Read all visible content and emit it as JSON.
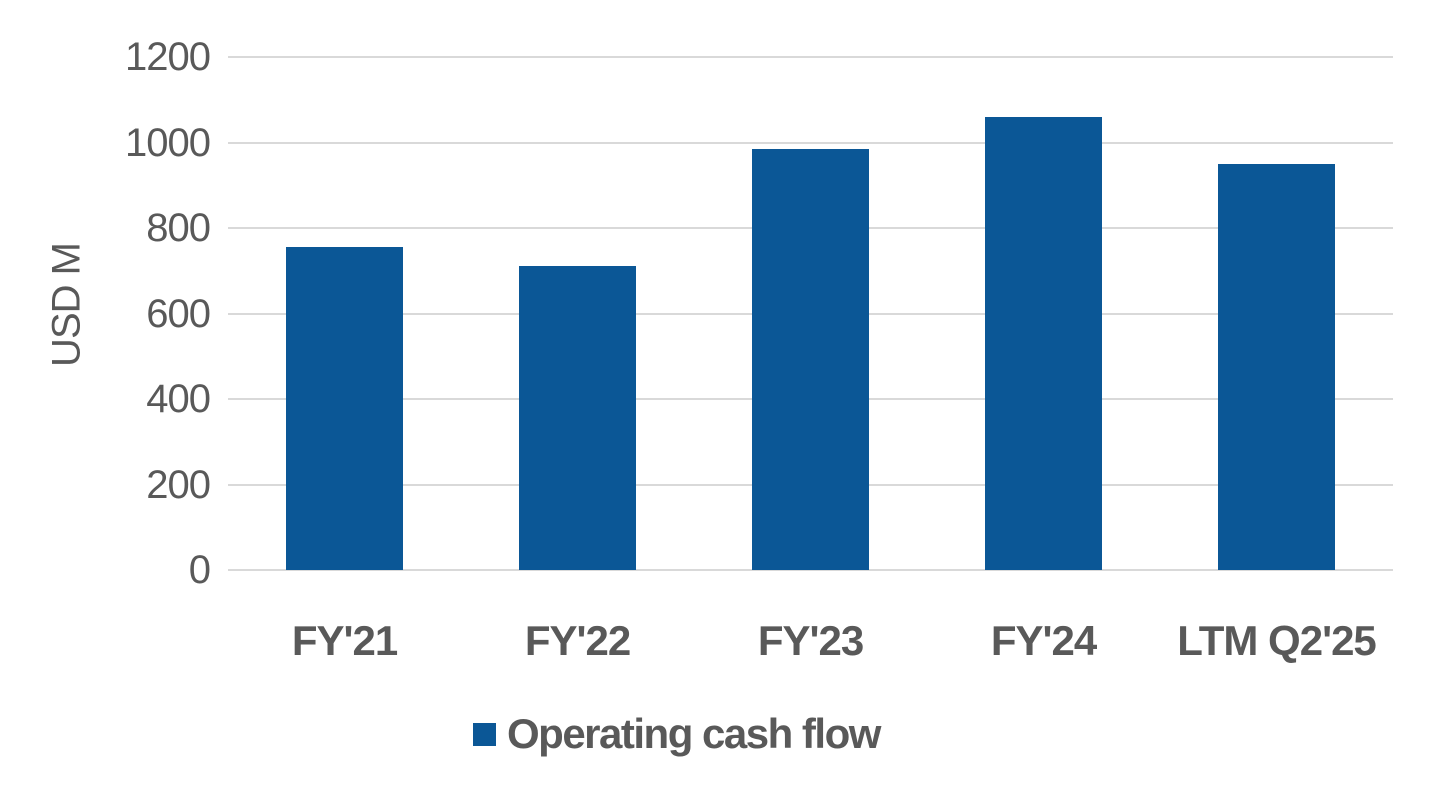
{
  "chart_data": {
    "type": "bar",
    "categories": [
      "FY'21",
      "FY'22",
      "FY'23",
      "FY'24",
      "LTM Q2'25"
    ],
    "series": [
      {
        "name": "Operating cash flow",
        "values": [
          755,
          712,
          985,
          1060,
          950
        ],
        "color": "#0B5796"
      }
    ],
    "title": "",
    "xlabel": "",
    "ylabel": "USD M",
    "ylim": [
      0,
      1200
    ],
    "yticks": [
      0,
      200,
      400,
      600,
      800,
      1000,
      1200
    ],
    "grid": true,
    "gridline_color": "#D9D9D9",
    "text_color": "#595959",
    "legend_position": "bottom",
    "background_color": "#FFFFFF"
  }
}
